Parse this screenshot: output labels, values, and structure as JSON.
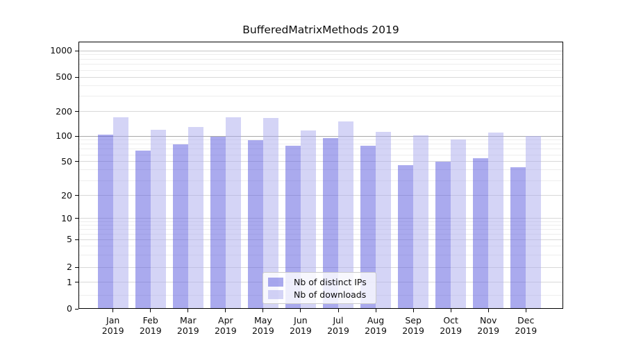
{
  "chart_data": {
    "type": "bar",
    "title": "BufferedMatrixMethods 2019",
    "months": [
      "Jan",
      "Feb",
      "Mar",
      "Apr",
      "May",
      "Jun",
      "Jul",
      "Aug",
      "Sep",
      "Oct",
      "Nov",
      "Dec"
    ],
    "year_label": "2019",
    "series": [
      {
        "name": "Nb of distinct IPs",
        "color": "rgba(85,85,221,0.5)",
        "values": [
          105,
          67,
          80,
          99,
          89,
          77,
          94,
          77,
          45,
          50,
          55,
          43
        ]
      },
      {
        "name": "Nb of downloads",
        "color": "rgba(170,170,238,0.5)",
        "values": [
          170,
          120,
          130,
          169,
          166,
          118,
          152,
          112,
          102,
          92,
          111,
          100
        ]
      }
    ],
    "y_axis": {
      "tick_values": [
        0,
        1,
        2,
        5,
        10,
        20,
        50,
        100,
        200,
        500,
        1000
      ],
      "tick_labels": [
        "0",
        "1",
        "2",
        "5",
        "10",
        "20",
        "50",
        "100",
        "200",
        "500",
        "1000"
      ],
      "minor_tick_values": [
        0.5,
        3,
        4,
        6,
        7,
        8,
        9,
        30,
        40,
        60,
        70,
        80,
        90,
        300,
        400,
        600,
        700,
        800,
        900
      ],
      "scale": "log-like, linear below 1",
      "range_top": 1100
    },
    "legend": {
      "entries": [
        "Nb of distinct IPs",
        "Nb of downloads"
      ],
      "position": "lower center"
    },
    "grid": true
  }
}
